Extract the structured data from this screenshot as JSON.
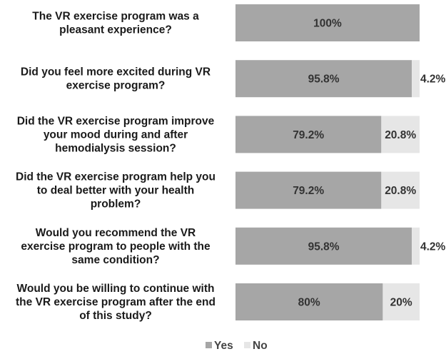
{
  "chart_data": {
    "type": "bar",
    "orientation": "horizontal",
    "stacked": true,
    "percent": true,
    "title": "",
    "xlabel": "",
    "ylabel": "",
    "xlim": [
      0,
      100
    ],
    "grid": false,
    "legend_position": "bottom",
    "categories": [
      [
        "The VR exercise program was a",
        "pleasant experience?"
      ],
      [
        "Did you feel more excited  during VR",
        "exercise program?"
      ],
      [
        "Did the VR exercise program improve",
        "your mood during and after",
        "hemodialysis session?"
      ],
      [
        "Did the VR exercise program help you",
        "to deal better with your health",
        "problem?"
      ],
      [
        "Would you recommend the VR",
        "exercise program to people with the",
        "same condition?"
      ],
      [
        "Would you be willing to continue with",
        "the VR exercise program after the end",
        "of this study?"
      ]
    ],
    "series": [
      {
        "name": "Yes",
        "color": "#a6a6a6",
        "values": [
          100,
          95.8,
          79.2,
          79.2,
          95.8,
          80
        ],
        "labels": [
          "100%",
          "95.8%",
          "79.2%",
          "79.2%",
          "95.8%",
          "80%"
        ]
      },
      {
        "name": "No",
        "color": "#e6e6e6",
        "values": [
          0,
          4.2,
          20.8,
          20.8,
          4.2,
          20
        ],
        "labels": [
          "",
          "4.2%",
          "20.8%",
          "20.8%",
          "4.2%",
          "20%"
        ]
      }
    ]
  }
}
